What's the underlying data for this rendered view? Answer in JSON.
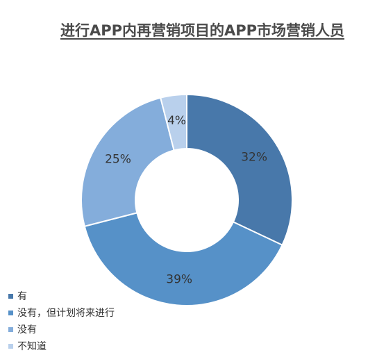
{
  "chart_data": {
    "type": "pie",
    "variant": "donut",
    "title": "进行APP内再营销项目的APP市场营销人员",
    "categories": [
      "有",
      "没有，但计划将来进行",
      "没有",
      "不知道"
    ],
    "values": [
      32,
      39,
      25,
      4
    ],
    "labels": [
      "32%",
      "39%",
      "25%",
      "4%"
    ],
    "colors": [
      "#4878aa",
      "#5691c8",
      "#84addb",
      "#b9d0ec"
    ],
    "legend_position": "bottom-left"
  }
}
